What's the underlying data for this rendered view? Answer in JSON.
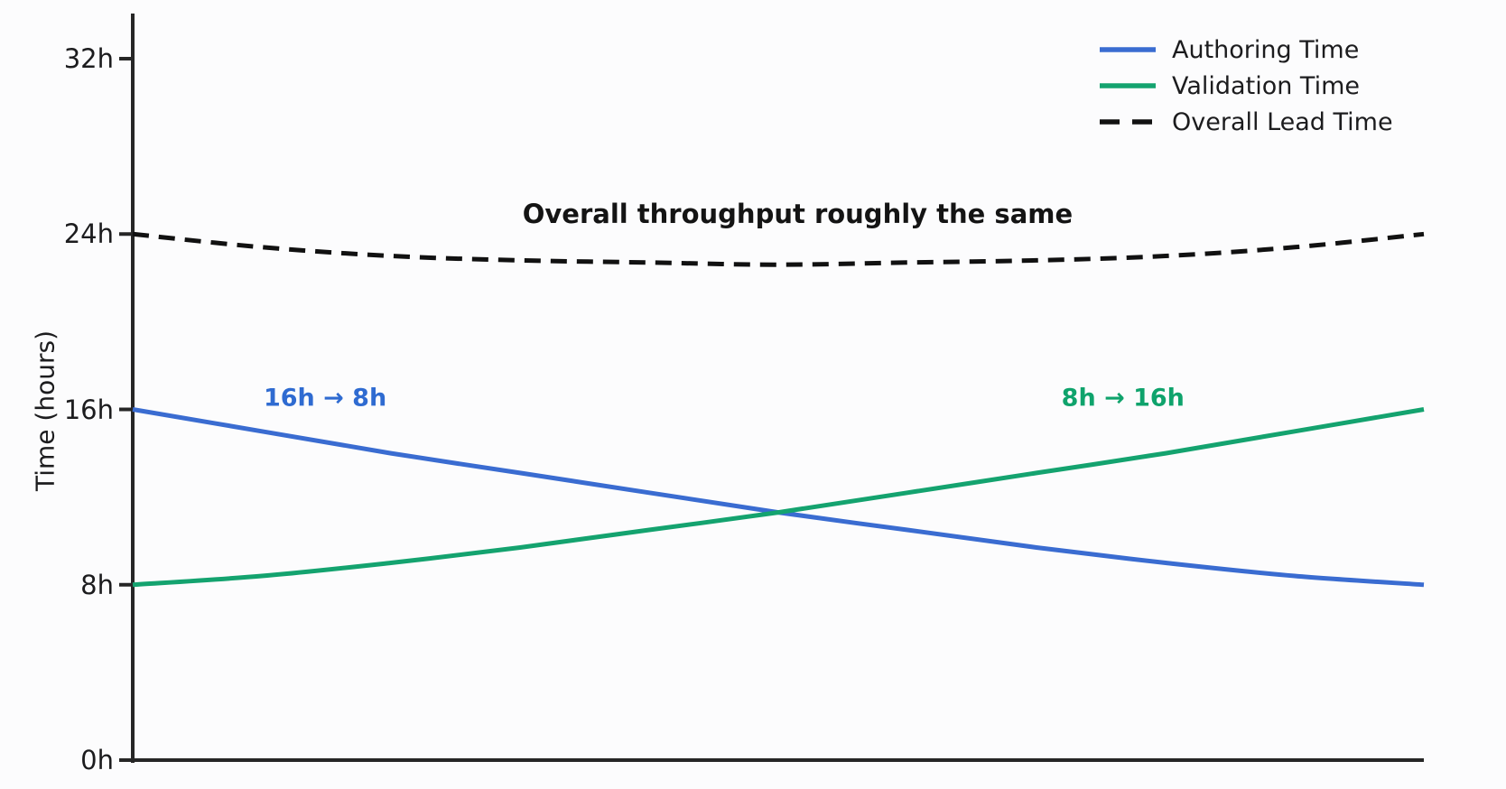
{
  "figure": {
    "background": "#fcfcfd",
    "axis_color": "#262626",
    "text_color": "#1c1c1e"
  },
  "chart_data": {
    "type": "line",
    "title": "",
    "xlabel": "",
    "ylabel": "Time (hours)",
    "ylim": [
      0,
      32
    ],
    "yticks": [
      {
        "value": 0,
        "label": "0h"
      },
      {
        "value": 8,
        "label": "8h"
      },
      {
        "value": 16,
        "label": "16h"
      },
      {
        "value": 24,
        "label": "24h"
      },
      {
        "value": 32,
        "label": "32h"
      }
    ],
    "xticks": [],
    "grid": false,
    "legend_position": "upper right",
    "x": [
      0,
      0.1,
      0.2,
      0.3,
      0.4,
      0.5,
      0.6,
      0.7,
      0.8,
      0.9,
      1.0
    ],
    "series": [
      {
        "name": "Authoring Time",
        "color": "#3a6cd1",
        "style": "solid",
        "values": [
          16,
          15.0,
          14.0,
          13.1,
          12.2,
          11.3,
          10.5,
          9.7,
          9.0,
          8.4,
          8
        ]
      },
      {
        "name": "Validation Time",
        "color": "#14a36f",
        "style": "solid",
        "values": [
          8,
          8.4,
          9.0,
          9.7,
          10.5,
          11.3,
          12.2,
          13.1,
          14.0,
          15.0,
          16
        ]
      },
      {
        "name": "Overall Lead Time",
        "color": "#111111",
        "style": "dashed",
        "values": [
          24,
          23.4,
          23.0,
          22.8,
          22.7,
          22.6,
          22.7,
          22.8,
          23.0,
          23.4,
          24
        ]
      }
    ],
    "annotations": [
      {
        "text": "16h → 8h",
        "color": "#2f6bd1",
        "x": 0.149,
        "y": 16.5,
        "kind": "side"
      },
      {
        "text": "8h → 16h",
        "color": "#0fa36c",
        "x": 0.767,
        "y": 16.5,
        "kind": "side"
      },
      {
        "text": "Overall throughput roughly the same",
        "color": "#141414",
        "x": 0.515,
        "y": 24.9,
        "kind": "title"
      }
    ]
  }
}
